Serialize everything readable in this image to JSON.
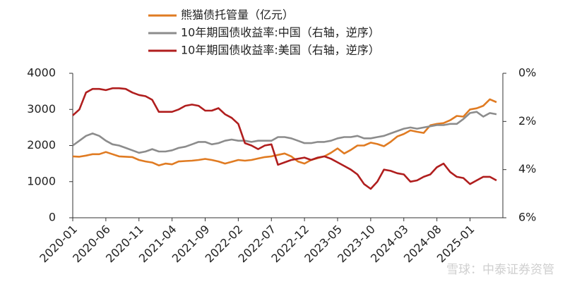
{
  "chart_data": {
    "type": "line",
    "categories": [
      "2020-01",
      null,
      null,
      null,
      null,
      "2020-06",
      null,
      null,
      null,
      null,
      "2020-11",
      null,
      null,
      null,
      null,
      "2021-04",
      null,
      null,
      null,
      null,
      "2021-09",
      null,
      null,
      null,
      null,
      "2022-02",
      null,
      null,
      null,
      null,
      "2022-07",
      null,
      null,
      null,
      null,
      "2022-12",
      null,
      null,
      null,
      null,
      "2023-05",
      null,
      null,
      null,
      null,
      "2023-10",
      null,
      null,
      null,
      null,
      "2024-03",
      null,
      null,
      null,
      null,
      "2024-08",
      null,
      null,
      null,
      null,
      "2025-01",
      null,
      null,
      null,
      null
    ],
    "ylim": [
      0,
      4000
    ],
    "yticks": [
      0,
      1000,
      2000,
      3000,
      4000
    ],
    "y2lim": [
      0,
      6
    ],
    "y2_reversed": true,
    "y2ticks": [
      {
        "value": 0,
        "label": "0%"
      },
      {
        "value": 2,
        "label": "2%"
      },
      {
        "value": 4,
        "label": "4%"
      },
      {
        "value": 6,
        "label": "6%"
      }
    ],
    "series": [
      {
        "name": "熊猫债托管量（亿元）",
        "color": "#e07b22",
        "values": [
          1700,
          1690,
          1720,
          1760,
          1760,
          1820,
          1760,
          1700,
          1690,
          1680,
          1600,
          1560,
          1530,
          1450,
          1500,
          1480,
          1560,
          1570,
          1580,
          1600,
          1630,
          1600,
          1560,
          1500,
          1550,
          1600,
          1580,
          1600,
          1640,
          1680,
          1700,
          1740,
          1780,
          1700,
          1560,
          1500,
          1600,
          1650,
          1700,
          1800,
          1920,
          1780,
          1880,
          2000,
          2000,
          2080,
          2040,
          1980,
          2100,
          2250,
          2320,
          2420,
          2380,
          2350,
          2560,
          2600,
          2620,
          2700,
          2820,
          2800,
          3000,
          3030,
          3100,
          3280,
          3200
        ]
      },
      {
        "name": "10年期国债收益率:中国（右轴，逆序）",
        "color": "#8c8c8c",
        "axis": "y2",
        "values": [
          3.0,
          2.8,
          2.6,
          2.5,
          2.6,
          2.8,
          2.95,
          3.0,
          3.1,
          3.2,
          3.3,
          3.25,
          3.15,
          3.25,
          3.25,
          3.2,
          3.1,
          3.05,
          2.95,
          2.85,
          2.85,
          2.95,
          2.9,
          2.8,
          2.75,
          2.8,
          2.8,
          2.85,
          2.8,
          2.8,
          2.8,
          2.65,
          2.65,
          2.7,
          2.8,
          2.9,
          2.9,
          2.85,
          2.85,
          2.8,
          2.7,
          2.65,
          2.65,
          2.6,
          2.7,
          2.7,
          2.65,
          2.6,
          2.5,
          2.4,
          2.3,
          2.25,
          2.3,
          2.25,
          2.2,
          2.15,
          2.15,
          2.1,
          2.1,
          1.9,
          1.65,
          1.6,
          1.8,
          1.65,
          1.7
        ]
      },
      {
        "name": "10年期国债收益率:美国（右轴，逆序）",
        "color": "#b01e1e",
        "axis": "y2",
        "values": [
          1.75,
          1.5,
          0.8,
          0.65,
          0.65,
          0.7,
          0.62,
          0.62,
          0.65,
          0.8,
          0.9,
          0.95,
          1.1,
          1.6,
          1.6,
          1.6,
          1.5,
          1.35,
          1.3,
          1.35,
          1.55,
          1.55,
          1.45,
          1.7,
          1.85,
          2.1,
          2.9,
          3.0,
          3.15,
          3.0,
          2.95,
          3.8,
          3.7,
          3.6,
          3.55,
          3.5,
          3.6,
          3.5,
          3.45,
          3.55,
          3.7,
          3.85,
          4.0,
          4.2,
          4.6,
          4.8,
          4.5,
          4.0,
          4.05,
          4.15,
          4.2,
          4.5,
          4.45,
          4.3,
          4.2,
          3.9,
          3.75,
          4.1,
          4.3,
          4.35,
          4.6,
          4.45,
          4.3,
          4.3,
          4.45
        ]
      }
    ]
  },
  "watermark": "雪球：中泰证券资管"
}
